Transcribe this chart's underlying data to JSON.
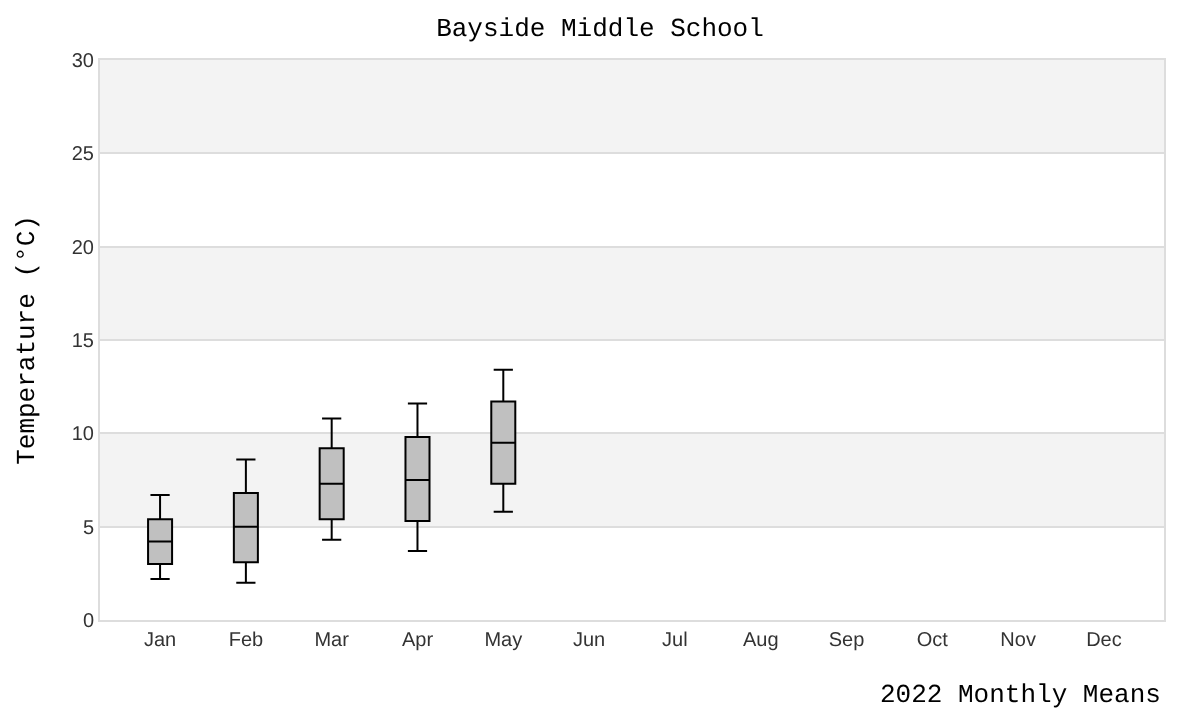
{
  "chart_data": {
    "type": "box",
    "title": "Bayside Middle School",
    "xlabel": "2022 Monthly Means",
    "ylabel": "Temperature (°C)",
    "categories": [
      "Jan",
      "Feb",
      "Mar",
      "Apr",
      "May",
      "Jun",
      "Jul",
      "Aug",
      "Sep",
      "Oct",
      "Nov",
      "Dec"
    ],
    "boxes": [
      {
        "low": 2.2,
        "q1": 3.0,
        "median": 4.2,
        "q3": 5.4,
        "high": 6.7
      },
      {
        "low": 2.0,
        "q1": 3.1,
        "median": 5.0,
        "q3": 6.8,
        "high": 8.6
      },
      {
        "low": 4.3,
        "q1": 5.4,
        "median": 7.3,
        "q3": 9.2,
        "high": 10.8
      },
      {
        "low": 3.7,
        "q1": 5.3,
        "median": 7.5,
        "q3": 9.8,
        "high": 11.6
      },
      {
        "low": 5.8,
        "q1": 7.3,
        "median": 9.5,
        "q3": 11.7,
        "high": 13.4
      },
      null,
      null,
      null,
      null,
      null,
      null,
      null
    ],
    "color": "#c0c0c0",
    "ylim": [
      0,
      30
    ],
    "yticks": [
      0,
      5,
      10,
      15,
      20,
      25,
      30
    ],
    "grid": "y"
  }
}
